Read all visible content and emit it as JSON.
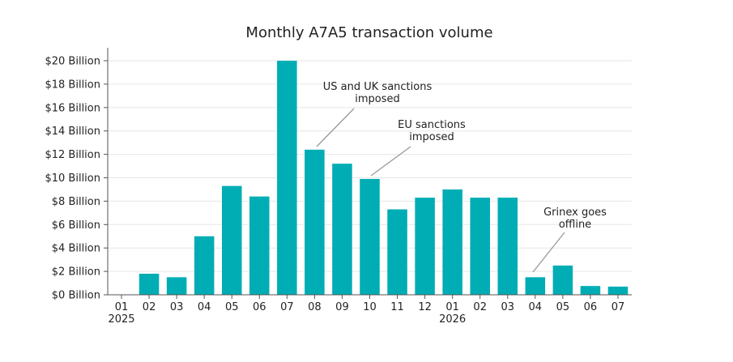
{
  "chart_data": {
    "type": "bar",
    "title": "Monthly A7A5 transaction volume",
    "xlabel": "",
    "ylabel": "",
    "ylim": [
      0,
      20
    ],
    "y_unit": "Billion USD",
    "y_ticks": [
      0,
      2,
      4,
      6,
      8,
      10,
      12,
      14,
      16,
      18,
      20
    ],
    "y_tick_labels": [
      "$0 Billion",
      "$2 Billion",
      "$4 Billion",
      "$6 Billion",
      "$8 Billion",
      "$10 Billion",
      "$12 Billion",
      "$14 Billion",
      "$16 Billion",
      "$18 Billion",
      "$20 Billion"
    ],
    "categories": [
      "01",
      "02",
      "03",
      "04",
      "05",
      "06",
      "07",
      "08",
      "09",
      "10",
      "11",
      "12",
      "01",
      "02",
      "03",
      "04",
      "05",
      "06",
      "07"
    ],
    "year_labels": [
      {
        "index": 0,
        "label": "2025"
      },
      {
        "index": 12,
        "label": "2026"
      }
    ],
    "values": [
      0,
      1.8,
      1.5,
      5.0,
      9.3,
      8.4,
      20.0,
      12.4,
      11.2,
      9.9,
      7.3,
      8.3,
      9.0,
      8.3,
      8.3,
      1.5,
      2.5,
      0.75,
      0.7
    ],
    "bar_color": "#00adb5",
    "grid": "horizontal",
    "annotations": [
      {
        "text_lines": [
          "US and UK sanctions",
          "imposed"
        ],
        "target_index": 7
      },
      {
        "text_lines": [
          "EU sanctions",
          "imposed"
        ],
        "target_index": 9
      },
      {
        "text_lines": [
          "Grinex goes",
          "offline"
        ],
        "target_index": 15
      }
    ]
  }
}
